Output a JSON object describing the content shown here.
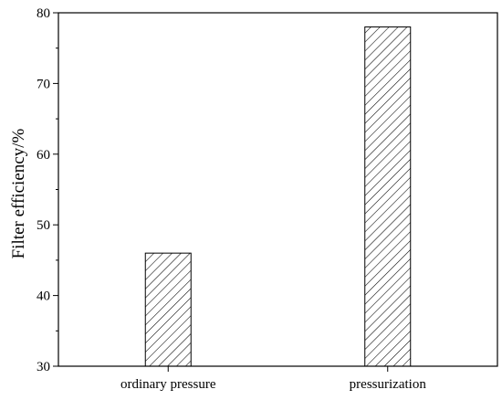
{
  "chart_data": {
    "type": "bar",
    "categories": [
      "ordinary pressure",
      "pressurization"
    ],
    "values": [
      46,
      78
    ],
    "title": "",
    "xlabel": "",
    "ylabel": "Filter efficiency/%",
    "ylim": [
      30,
      80
    ],
    "yticks_major": [
      30,
      40,
      50,
      60,
      70,
      80
    ],
    "yticks_minor_step": 5,
    "grid": false,
    "bar_fill": "hatched",
    "bar_color": "#000000",
    "background": "#ffffff"
  }
}
